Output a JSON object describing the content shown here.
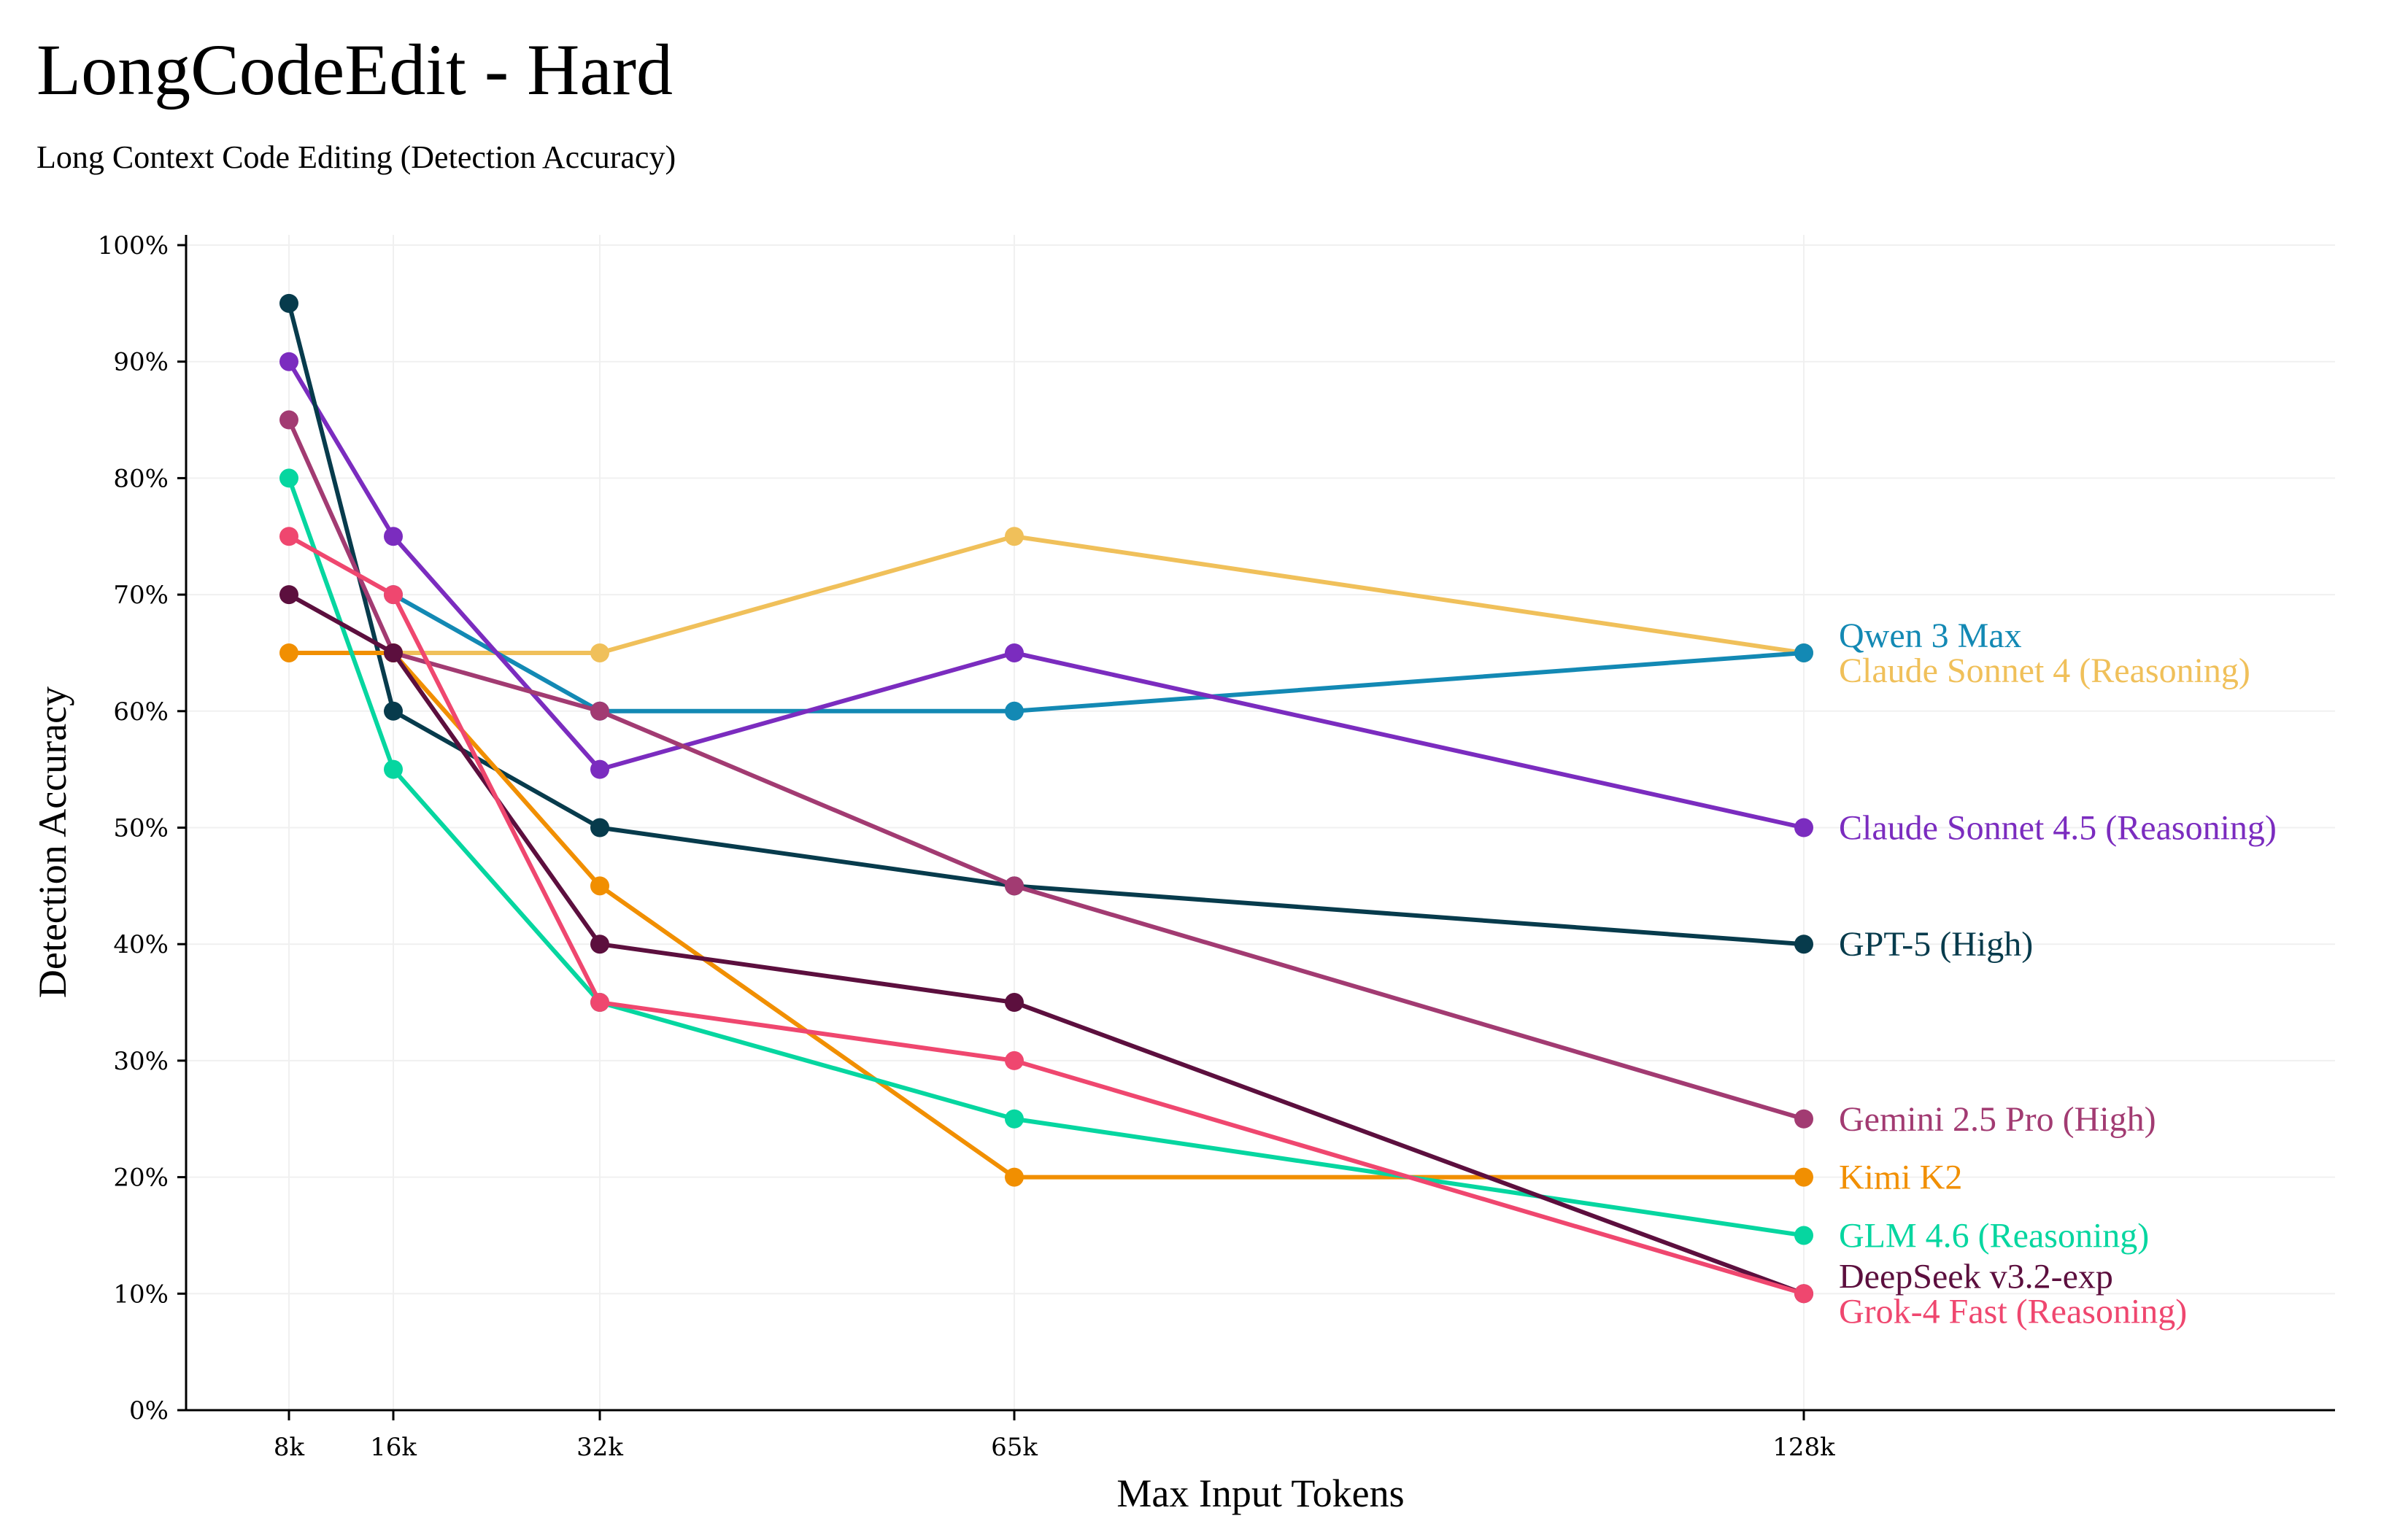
{
  "header": {
    "title": "LongCodeEdit - Hard",
    "subtitle": "Long Context Code Editing (Detection Accuracy)"
  },
  "chart_data": {
    "type": "line",
    "title": "LongCodeEdit - Hard",
    "subtitle": "Long Context Code Editing (Detection Accuracy)",
    "xlabel": "Max Input Tokens",
    "ylabel": "Detection Accuracy",
    "x": [
      "8k",
      "16k",
      "32k",
      "65k",
      "128k"
    ],
    "x_values": [
      8,
      16,
      32,
      65,
      128
    ],
    "ylim": [
      0,
      100
    ],
    "yticks": [
      "0%",
      "10%",
      "20%",
      "30%",
      "40%",
      "50%",
      "60%",
      "70%",
      "80%",
      "90%",
      "100%"
    ],
    "grid": true,
    "legend": "inline-right",
    "series": [
      {
        "name": "Claude Sonnet 4 (Reasoning)",
        "color": "#f0c05a",
        "values": [
          null,
          65,
          65,
          75,
          65
        ]
      },
      {
        "name": "Qwen 3 Max",
        "color": "#1389b4",
        "values": [
          null,
          70,
          60,
          60,
          65
        ]
      },
      {
        "name": "Claude Sonnet 4.5 (Reasoning)",
        "color": "#7b2cbf",
        "values": [
          90,
          75,
          55,
          65,
          50
        ]
      },
      {
        "name": "GPT-5 (High)",
        "color": "#073b4c",
        "values": [
          95,
          60,
          50,
          45,
          40
        ]
      },
      {
        "name": "Gemini 2.5 Pro (High)",
        "color": "#a23b72",
        "values": [
          85,
          65,
          60,
          45,
          25
        ]
      },
      {
        "name": "Kimi K2",
        "color": "#f18f01",
        "values": [
          65,
          65,
          45,
          20,
          20
        ]
      },
      {
        "name": "GLM 4.6 (Reasoning)",
        "color": "#06d6a0",
        "values": [
          80,
          55,
          35,
          25,
          15
        ]
      },
      {
        "name": "DeepSeek v3.2-exp",
        "color": "#5c0f3e",
        "values": [
          70,
          65,
          40,
          35,
          10
        ]
      },
      {
        "name": "Grok-4 Fast (Reasoning)",
        "color": "#ef476f",
        "values": [
          75,
          70,
          35,
          30,
          10
        ]
      }
    ],
    "label_order_top_to_bottom": [
      "Qwen 3 Max",
      "Claude Sonnet 4 (Reasoning)",
      "Claude Sonnet 4.5 (Reasoning)",
      "GPT-5 (High)",
      "Gemini 2.5 Pro (High)",
      "Kimi K2",
      "GLM 4.6 (Reasoning)",
      "DeepSeek v3.2-exp",
      "Grok-4 Fast (Reasoning)"
    ]
  }
}
